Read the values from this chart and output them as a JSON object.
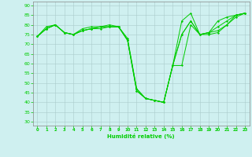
{
  "xlabel": "Humidité relative (%)",
  "background_color": "#cff0f0",
  "grid_color": "#aacccc",
  "line_color": "#00cc00",
  "marker_color": "#00cc00",
  "xlim": [
    -0.5,
    23.5
  ],
  "ylim": [
    28,
    92
  ],
  "yticks": [
    30,
    35,
    40,
    45,
    50,
    55,
    60,
    65,
    70,
    75,
    80,
    85,
    90
  ],
  "xticks": [
    0,
    1,
    2,
    3,
    4,
    5,
    6,
    7,
    8,
    9,
    10,
    11,
    12,
    13,
    14,
    15,
    16,
    17,
    18,
    19,
    20,
    21,
    22,
    23
  ],
  "series": [
    [
      74,
      78,
      80,
      76,
      75,
      77,
      78,
      79,
      79,
      79,
      72,
      46,
      42,
      41,
      40,
      59,
      82,
      86,
      75,
      76,
      82,
      84,
      85,
      86
    ],
    [
      74,
      78,
      80,
      76,
      75,
      77,
      78,
      78,
      79,
      79,
      72,
      46,
      42,
      41,
      40,
      59,
      75,
      82,
      75,
      76,
      77,
      80,
      84,
      86
    ],
    [
      74,
      79,
      80,
      76,
      75,
      78,
      79,
      79,
      79,
      79,
      72,
      47,
      42,
      41,
      40,
      59,
      59,
      80,
      75,
      76,
      79,
      82,
      85,
      86
    ],
    [
      74,
      78,
      80,
      76,
      75,
      77,
      78,
      79,
      80,
      79,
      73,
      47,
      42,
      41,
      40,
      59,
      75,
      82,
      75,
      75,
      76,
      80,
      85,
      86
    ]
  ]
}
